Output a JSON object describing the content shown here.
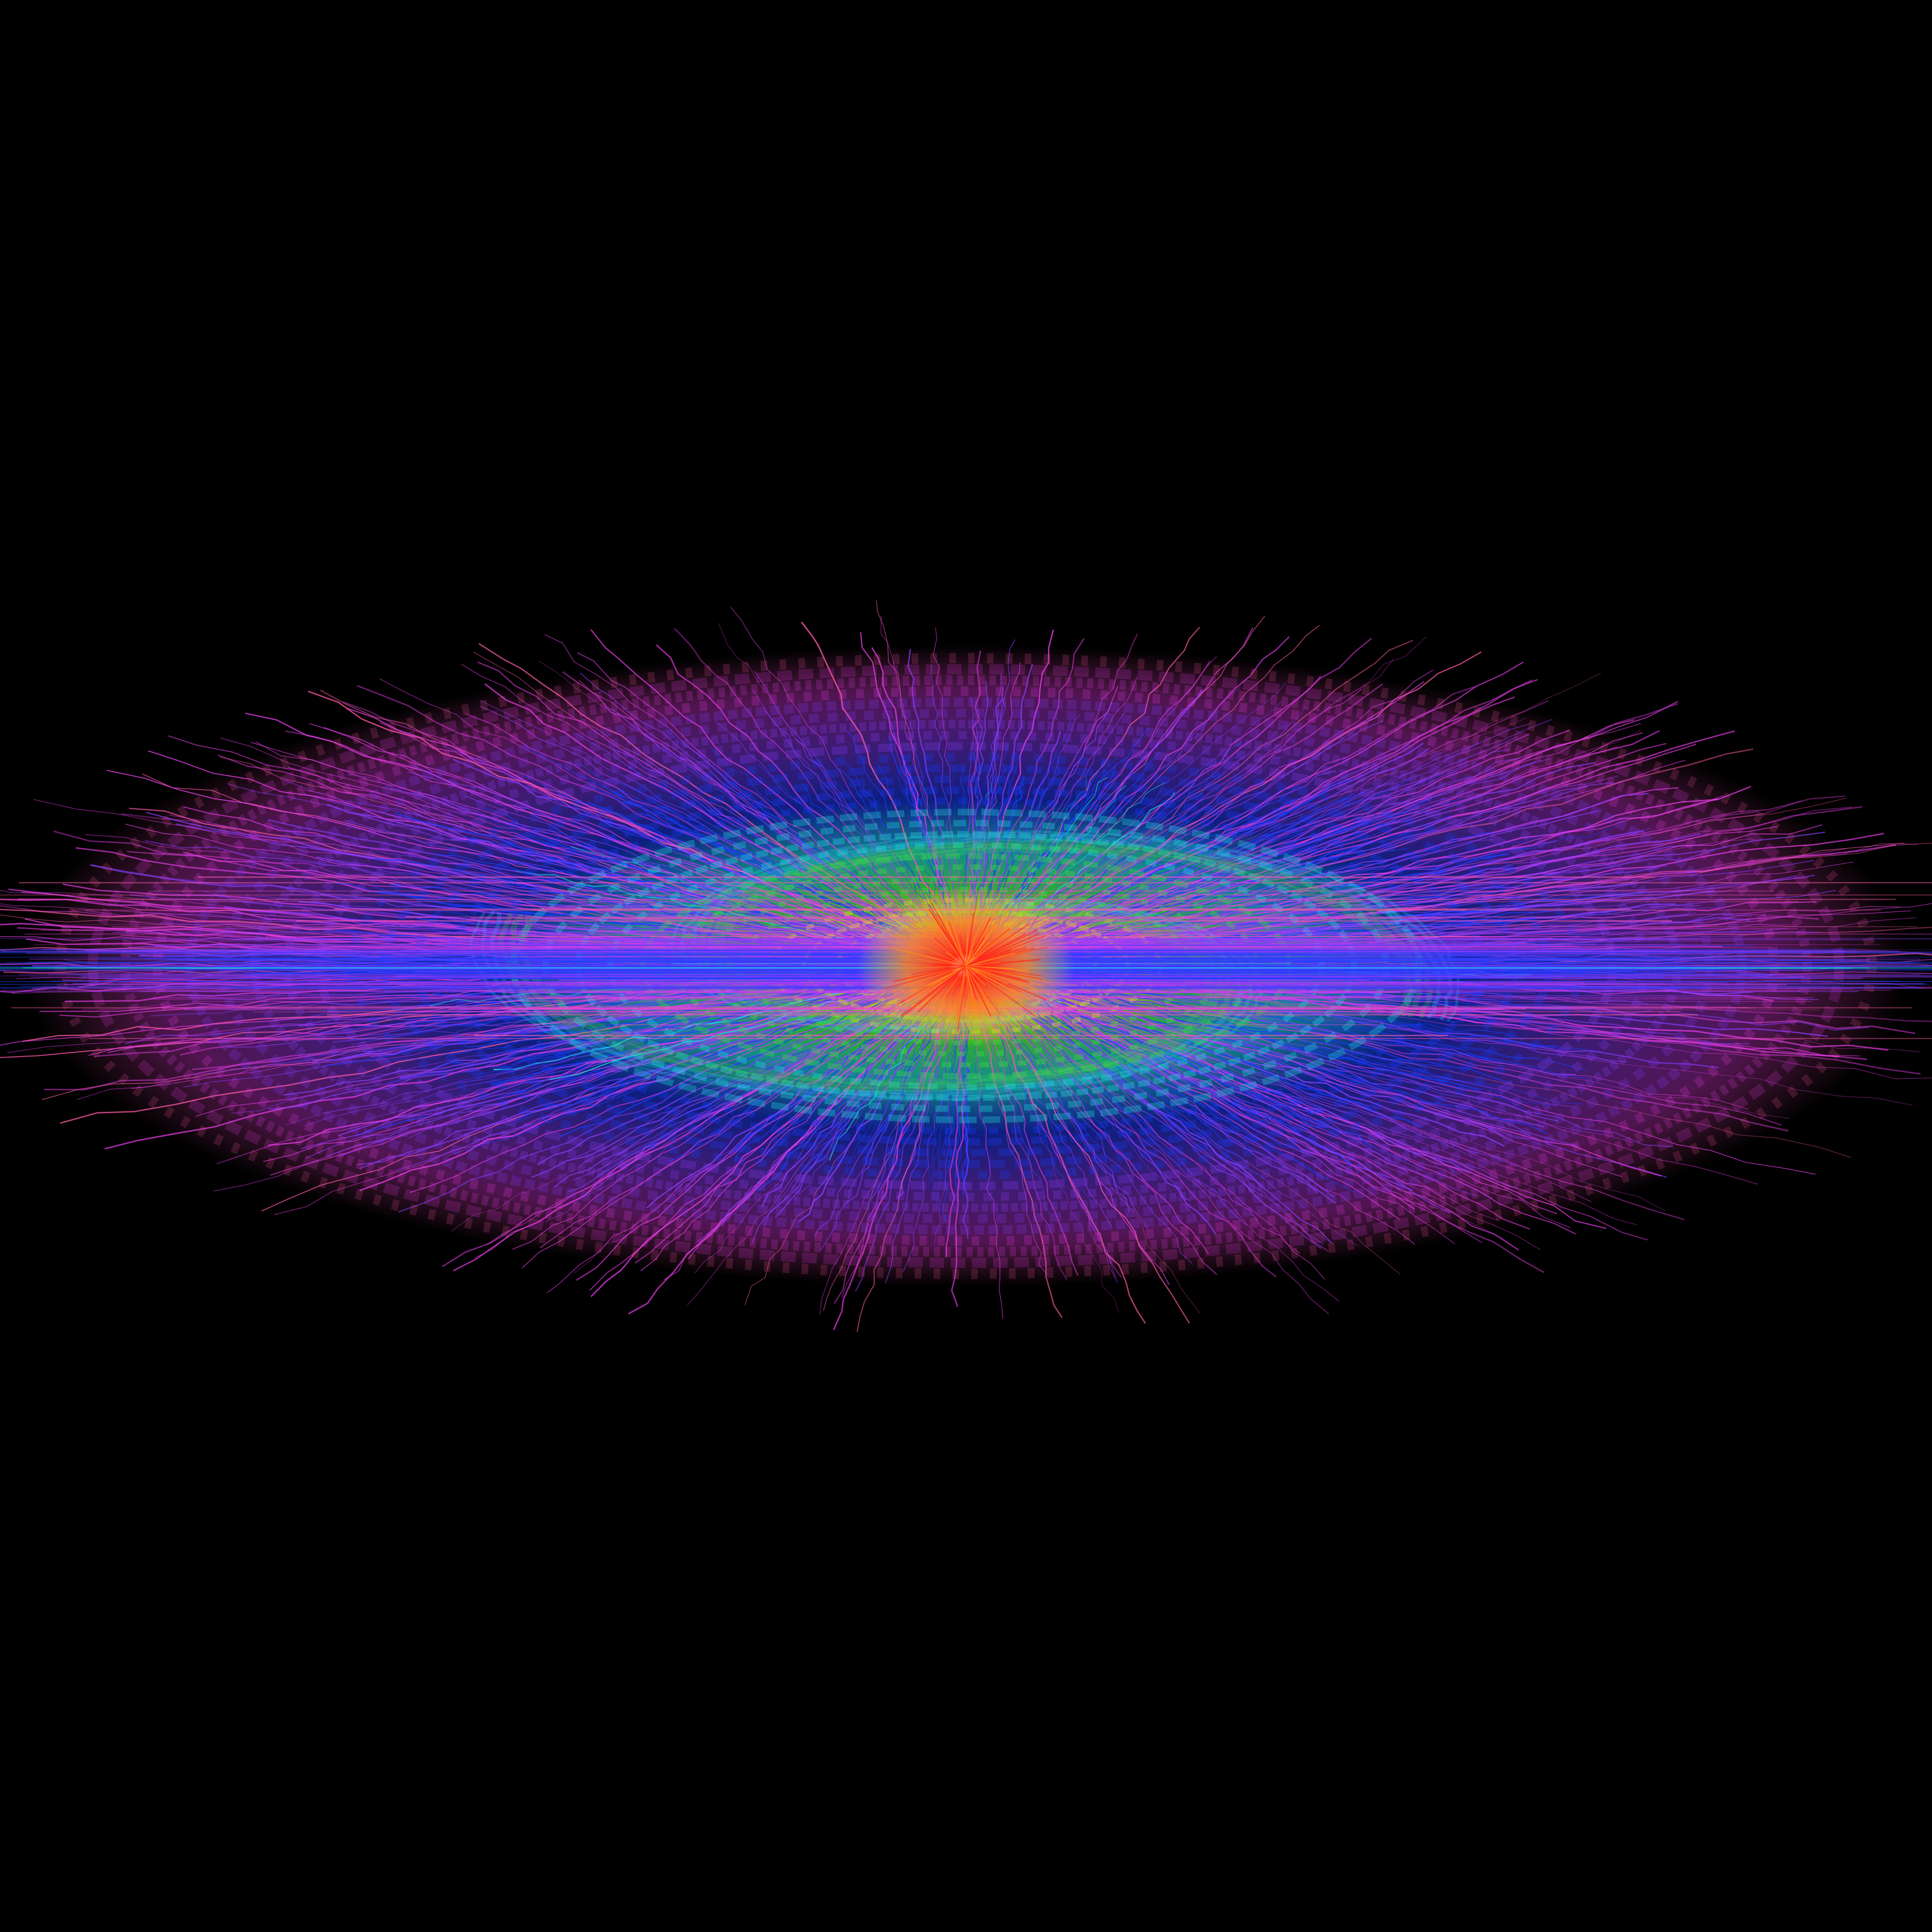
{
  "image": {
    "subject": "spiral-galaxy-visualization",
    "background_color": "#000000"
  },
  "palette": {
    "core": "#ff2a1a",
    "inner_orange": "#ff8a1f",
    "inner_yellow": "#e6e62a",
    "green": "#3ee63a",
    "cyan": "#22e6e6",
    "blue": "#1a3cff",
    "violet": "#8a3cff",
    "magenta": "#e63ce6",
    "pink": "#ff5aa8"
  }
}
